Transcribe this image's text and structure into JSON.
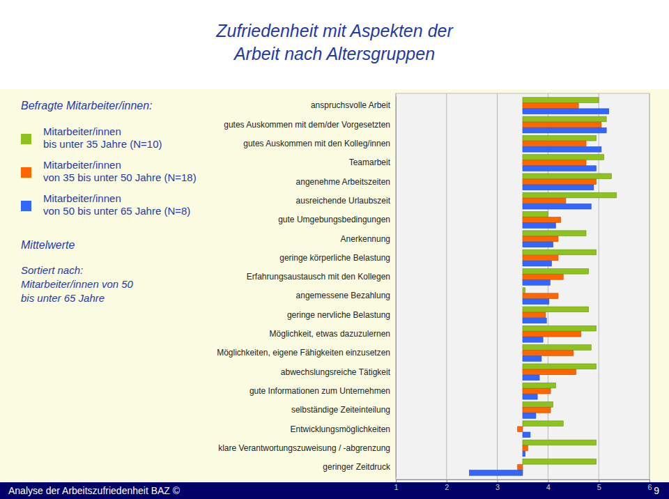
{
  "chart_data": {
    "type": "bar",
    "orientation": "horizontal",
    "title": "Zufriedenheit mit Aspekten der Arbeit nach Altersgruppen",
    "annotations": [
      "Befragte Mitarbeiter/innen:",
      "Mittelwerte",
      "Sortiert nach:",
      "Mitarbeiter/innen von 50",
      "bis unter 65 Jahre",
      "Analyse der Arbeitszufriedenheit BAZ ©",
      "9"
    ],
    "categories": [
      "anspruchsvolle Arbeit",
      "gutes Auskommen mit dem/der Vorgesetzten",
      "gutes Auskommen mit den Kolleg/innen",
      "Teamarbeit",
      "angenehme Arbeitszeiten",
      "ausreichende Urlaubszeit",
      "gute Umgebungsbedingungen",
      "Anerkennung",
      "geringe körperliche Belastung",
      "Erfahrungsaustausch mit den Kollegen",
      "angemessene Bezahlung",
      "geringe nervliche Belastung",
      "Möglichkeit, etwas dazuzulernen",
      "Möglichkeiten, eigene Fähigkeiten einzusetzen",
      "abwechslungsreiche Tätigkeit",
      "gute Informationen zum Unternehmen",
      "selbständige Zeiteinteilung",
      "Entwicklungsmöglichkeiten",
      "klare Verantwortungszuweisung / -abgrenzung",
      "geringer Zeitdruck"
    ],
    "series": [
      {
        "name": "Mitarbeiter/innen bis unter 35 Jahre (N=10)",
        "color": "#8dc21f",
        "values": [
          5.0,
          5.15,
          4.95,
          5.1,
          5.25,
          5.35,
          4.0,
          4.75,
          4.95,
          4.8,
          3.55,
          4.8,
          4.95,
          4.85,
          4.95,
          4.15,
          4.1,
          4.3,
          4.95,
          4.95
        ]
      },
      {
        "name": "Mitarbeiter/innen von 35 bis unter 50 Jahre (N=18)",
        "color": "#ff6600",
        "values": [
          4.6,
          5.05,
          4.75,
          4.75,
          4.95,
          4.35,
          4.25,
          4.2,
          4.2,
          4.3,
          4.2,
          3.95,
          4.65,
          4.5,
          4.55,
          4.05,
          4.05,
          3.4,
          3.6,
          3.4
        ]
      },
      {
        "name": "Mitarbeiter/innen von 50 bis unter 65 Jahre (N=8)",
        "color": "#3366ff",
        "values": [
          5.2,
          5.15,
          5.05,
          4.95,
          4.9,
          4.85,
          4.15,
          4.1,
          4.07,
          4.04,
          4.02,
          3.97,
          3.9,
          3.87,
          3.83,
          3.79,
          3.76,
          3.65,
          3.55,
          2.45
        ]
      }
    ],
    "xlim": [
      1,
      6
    ],
    "xticks": [
      1,
      2,
      3,
      4,
      5,
      6
    ],
    "grid": true,
    "legend": "left"
  }
}
